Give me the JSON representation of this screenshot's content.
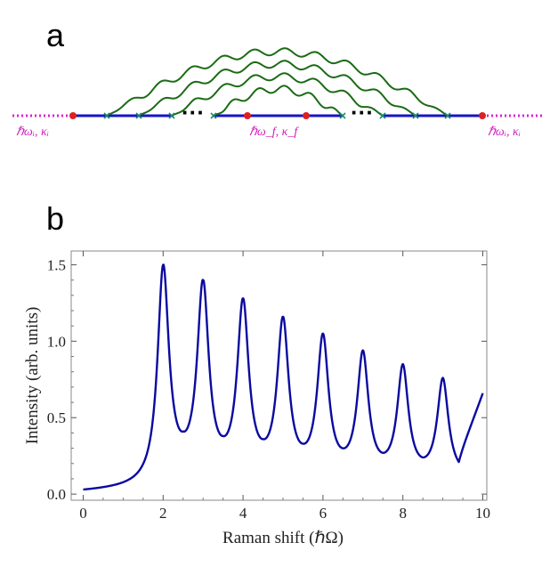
{
  "panel_a": {
    "label": "a",
    "ellipsis": "···",
    "left_label": "ℏωᵢ,  κᵢ",
    "middle_label": "ℏω_f,  κ_f",
    "right_label": "ℏωᵢ,  κᵢ",
    "colors": {
      "photon_line": "#e020d0",
      "electron_line": "#1515c8",
      "phonon_line": "#1a6b14",
      "vertex": "#e02020",
      "cross": "#1a8a6a"
    }
  },
  "panel_b": {
    "label": "b"
  },
  "chart_data": {
    "type": "line",
    "xlabel": "Raman shift (ℏΩ)",
    "ylabel": "Intensity (arb. units)",
    "xlim": [
      -0.3,
      10.1
    ],
    "ylim": [
      -0.04,
      1.59
    ],
    "xticks": [
      0,
      2,
      4,
      6,
      8,
      10
    ],
    "yticks": [
      0.0,
      0.5,
      1.0,
      1.5
    ],
    "xtick_labels": [
      "0",
      "2",
      "4",
      "6",
      "8",
      "10"
    ],
    "ytick_labels": [
      "0.0",
      "0.5",
      "1.0",
      "1.5"
    ],
    "grid": false,
    "line_color": "#0a0aa0",
    "peaks": [
      {
        "x": 2,
        "y": 1.5
      },
      {
        "x": 3,
        "y": 1.4
      },
      {
        "x": 4,
        "y": 1.28
      },
      {
        "x": 5,
        "y": 1.16
      },
      {
        "x": 6,
        "y": 1.05
      },
      {
        "x": 7,
        "y": 0.94
      },
      {
        "x": 8,
        "y": 0.85
      },
      {
        "x": 9,
        "y": 0.76
      }
    ],
    "minima": [
      {
        "x": 2.5,
        "y": 0.41
      },
      {
        "x": 3.5,
        "y": 0.38
      },
      {
        "x": 4.5,
        "y": 0.36
      },
      {
        "x": 5.5,
        "y": 0.33
      },
      {
        "x": 6.5,
        "y": 0.3
      },
      {
        "x": 7.5,
        "y": 0.27
      },
      {
        "x": 8.5,
        "y": 0.24
      },
      {
        "x": 9.4,
        "y": 0.21
      }
    ],
    "start": {
      "x": 0,
      "y": 0.03
    },
    "end": {
      "x": 10,
      "y": 0.66
    }
  }
}
